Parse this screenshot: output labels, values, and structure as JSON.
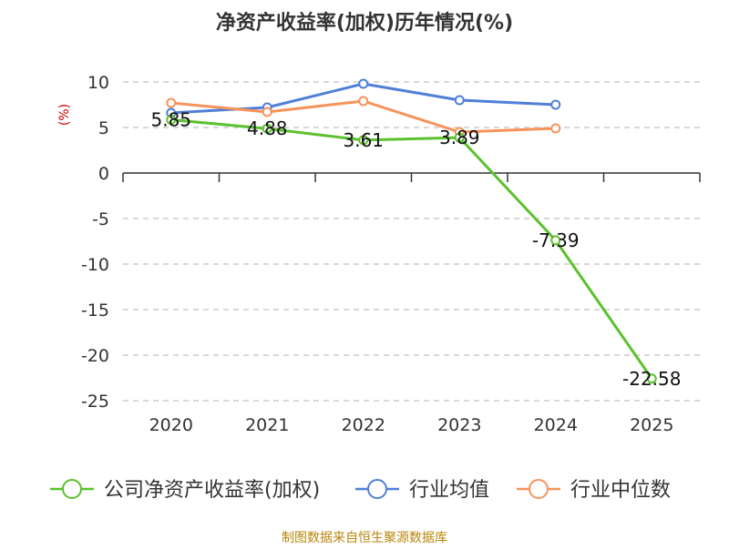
{
  "chart_data": {
    "type": "line",
    "title": "净资产收益率(加权)历年情况(%)",
    "ylabel": "(%)",
    "categories": [
      "2020",
      "2021",
      "2022",
      "2023",
      "2024",
      "2025"
    ],
    "ylim": [
      -25,
      10
    ],
    "yticks": [
      10,
      5,
      0,
      -5,
      -10,
      -15,
      -20,
      -25
    ],
    "grid": true,
    "legend_position": "bottom",
    "series": [
      {
        "name": "公司净资产收益率(加权)",
        "color": "#5cc12e",
        "values": [
          5.85,
          4.88,
          3.61,
          3.89,
          -7.39,
          -22.58
        ],
        "labels": [
          "5.85",
          "4.88",
          "3.61",
          "3.89",
          "-7.39",
          "-22.58"
        ]
      },
      {
        "name": "行业均值",
        "color": "#4f7fd8",
        "values": [
          6.6,
          7.2,
          9.8,
          8.0,
          7.5,
          null
        ]
      },
      {
        "name": "行业中位数",
        "color": "#f7935a",
        "values": [
          7.7,
          6.7,
          7.9,
          4.5,
          4.9,
          null
        ]
      }
    ]
  },
  "source_text": "制图数据来自恒生聚源数据库"
}
